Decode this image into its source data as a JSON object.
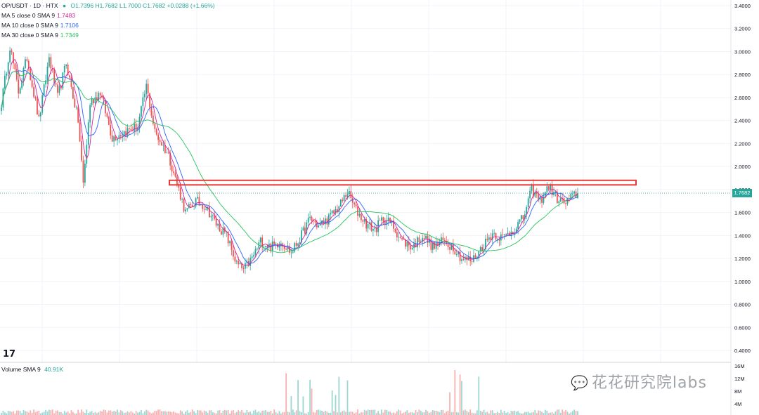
{
  "header": {
    "symbol": "OP/USDT · 1D · HTX",
    "ohlc": "O1.7396 H1.7682 L1.7000 C1.7682 +0.0288 (+1.66%)"
  },
  "indicators": [
    {
      "label": "MA 5 close 0 SMA 9",
      "value": "1.7483",
      "color": "#d6219c"
    },
    {
      "label": "MA 10 close 0 SMA 9",
      "value": "1.7106",
      "color": "#2962ff"
    },
    {
      "label": "MA 30 close 0 SMA 9",
      "value": "1.7349",
      "color": "#26c65d"
    }
  ],
  "volume": {
    "label": "Volume SMA 9",
    "value": "40.91K"
  },
  "last_price": "1.7682",
  "watermark": "花花研究院labs",
  "tv_logo": "17",
  "colors": {
    "up": "#26a69a",
    "down": "#ef5350",
    "highlight": "#e53935"
  },
  "chart_data": {
    "type": "candlestick",
    "title": "OP/USDT · 1D · HTX",
    "price_axis_ticks": [
      "3.4000",
      "3.2000",
      "3.0000",
      "2.8000",
      "2.6000",
      "2.4000",
      "2.2000",
      "2.0000",
      "1.8000",
      "1.6000",
      "1.4000",
      "1.2000",
      "1.0000",
      "0.8000",
      "0.6000",
      "0.4000"
    ],
    "volume_axis_ticks": [
      "16M",
      "12M",
      "8M",
      "4M"
    ],
    "ylim": [
      0.4,
      3.4
    ],
    "last_close": 1.7682,
    "resistance_zone": [
      1.84,
      1.88
    ],
    "close_path": [
      {
        "i": 0,
        "c": 2.55
      },
      {
        "i": 5,
        "c": 3.05
      },
      {
        "i": 10,
        "c": 2.65
      },
      {
        "i": 15,
        "c": 2.95
      },
      {
        "i": 22,
        "c": 2.4
      },
      {
        "i": 28,
        "c": 2.95
      },
      {
        "i": 33,
        "c": 2.6
      },
      {
        "i": 38,
        "c": 2.9
      },
      {
        "i": 45,
        "c": 2.4
      },
      {
        "i": 48,
        "c": 1.85
      },
      {
        "i": 52,
        "c": 2.55
      },
      {
        "i": 58,
        "c": 2.65
      },
      {
        "i": 65,
        "c": 2.25
      },
      {
        "i": 72,
        "c": 2.3
      },
      {
        "i": 80,
        "c": 2.35
      },
      {
        "i": 85,
        "c": 2.7
      },
      {
        "i": 90,
        "c": 2.3
      },
      {
        "i": 98,
        "c": 2.1
      },
      {
        "i": 103,
        "c": 1.85
      },
      {
        "i": 108,
        "c": 1.6
      },
      {
        "i": 114,
        "c": 1.7
      },
      {
        "i": 120,
        "c": 1.65
      },
      {
        "i": 126,
        "c": 1.5
      },
      {
        "i": 132,
        "c": 1.4
      },
      {
        "i": 138,
        "c": 1.15
      },
      {
        "i": 142,
        "c": 1.1
      },
      {
        "i": 147,
        "c": 1.2
      },
      {
        "i": 152,
        "c": 1.35
      },
      {
        "i": 158,
        "c": 1.3
      },
      {
        "i": 164,
        "c": 1.35
      },
      {
        "i": 170,
        "c": 1.25
      },
      {
        "i": 176,
        "c": 1.4
      },
      {
        "i": 181,
        "c": 1.55
      },
      {
        "i": 186,
        "c": 1.48
      },
      {
        "i": 192,
        "c": 1.55
      },
      {
        "i": 198,
        "c": 1.65
      },
      {
        "i": 203,
        "c": 1.78
      },
      {
        "i": 208,
        "c": 1.62
      },
      {
        "i": 214,
        "c": 1.5
      },
      {
        "i": 219,
        "c": 1.45
      },
      {
        "i": 224,
        "c": 1.55
      },
      {
        "i": 229,
        "c": 1.5
      },
      {
        "i": 235,
        "c": 1.35
      },
      {
        "i": 241,
        "c": 1.3
      },
      {
        "i": 247,
        "c": 1.4
      },
      {
        "i": 253,
        "c": 1.3
      },
      {
        "i": 259,
        "c": 1.35
      },
      {
        "i": 265,
        "c": 1.3
      },
      {
        "i": 270,
        "c": 1.2
      },
      {
        "i": 276,
        "c": 1.18
      },
      {
        "i": 282,
        "c": 1.3
      },
      {
        "i": 288,
        "c": 1.42
      },
      {
        "i": 294,
        "c": 1.38
      },
      {
        "i": 300,
        "c": 1.45
      },
      {
        "i": 306,
        "c": 1.55
      },
      {
        "i": 311,
        "c": 1.8
      },
      {
        "i": 316,
        "c": 1.7
      },
      {
        "i": 321,
        "c": 1.83
      },
      {
        "i": 326,
        "c": 1.72
      },
      {
        "i": 331,
        "c": 1.68
      },
      {
        "i": 335,
        "c": 1.74
      },
      {
        "i": 338,
        "c": 1.7682
      }
    ]
  }
}
